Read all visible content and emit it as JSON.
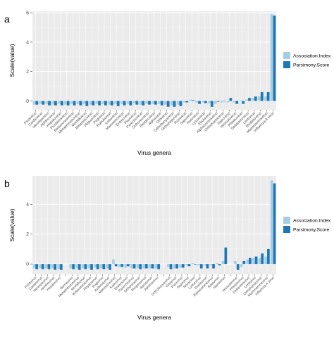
{
  "colors": {
    "association": "#a6cee3",
    "parsimony": "#1f78b4",
    "panel_bg": "#ebebeb",
    "grid_major": "#ffffff",
    "grid_minor": "#f2f2f2",
    "axis_text": "#4d4d4d",
    "title_text": "#000000"
  },
  "chart_data": [
    {
      "panel_label": "a",
      "type": "bar",
      "xlabel": "Virus genera",
      "ylabel": "Scale(value)",
      "ylim": [
        -0.6,
        6.1
      ],
      "yticks": [
        0,
        2,
        4,
        6
      ],
      "ytick_labels": [
        "0",
        "2",
        "4",
        "6"
      ],
      "grid": true,
      "legend_position": "right",
      "categories": [
        "Pestivirus",
        "Cardiovirus",
        "Hennipavirus",
        "Aphthovirus",
        "Hepatovirus",
        "Picobirnavirus",
        "Betacoronavirus",
        "Metapneumovirus",
        "Morbillivirus",
        "Betaretrovirus",
        "Hepacivirus",
        "Pegivirus",
        "Rubulavirus",
        "Kobuvirus",
        "Mamastrovirus",
        "Enterovirus",
        "Flavivirus",
        "Parechovirus",
        "Orthoreovirus",
        "Respirovirus",
        "Alphavirus",
        "Orbivirus",
        "Orthobunyavirus",
        "Orthohepevirus",
        "Rotavirus",
        "Sapovirus",
        "Norovirus",
        "Lyssavirus",
        "Ebolavirus",
        "Alphacoronavirus",
        "Orthohantavirus",
        "Nairovirus",
        "Vesiculovirus",
        "Phlebovirus",
        "Deltaretrovirus",
        "Lentivirus",
        "Rhabdovirus",
        "Mammarenavirus",
        "Influenza A virus"
      ],
      "series": [
        {
          "name": "Association.Index",
          "values": [
            -0.25,
            -0.2,
            -0.2,
            -0.25,
            -0.2,
            -0.25,
            -0.2,
            -0.2,
            -0.2,
            -0.25,
            -0.2,
            -0.2,
            -0.25,
            -0.2,
            -0.2,
            -0.2,
            -0.15,
            -0.25,
            -0.2,
            -0.2,
            -0.2,
            -0.25,
            -0.3,
            -0.25,
            -0.1,
            0.1,
            -0.1,
            -0.1,
            -0.15,
            -0.2,
            -0.1,
            -0.1,
            -0.1,
            0.05,
            0.1,
            0.2,
            0.3,
            0.3,
            5.9
          ]
        },
        {
          "name": "Parsimony.Score",
          "values": [
            -0.25,
            -0.25,
            -0.3,
            -0.3,
            -0.3,
            -0.3,
            -0.3,
            -0.3,
            -0.35,
            -0.3,
            -0.3,
            -0.3,
            -0.3,
            -0.35,
            -0.3,
            -0.3,
            -0.25,
            -0.3,
            -0.25,
            -0.25,
            -0.3,
            -0.4,
            -0.4,
            -0.35,
            -0.1,
            0.05,
            -0.2,
            -0.15,
            -0.4,
            -0.05,
            0.0,
            0.2,
            -0.2,
            -0.2,
            0.2,
            0.3,
            0.6,
            0.6,
            5.8
          ]
        }
      ]
    },
    {
      "panel_label": "b",
      "type": "bar",
      "xlabel": "Virus genera",
      "ylabel": "Scale(value)",
      "ylim": [
        -0.7,
        5.9
      ],
      "yticks": [
        0,
        2,
        4
      ],
      "ytick_labels": [
        "0",
        "2",
        "4"
      ],
      "grid": true,
      "legend_position": "right",
      "categories": [
        "Pestivirus",
        "Cardiovirus",
        "Hennipavirus",
        "Aphthovirus",
        "Hepatovirus",
        "",
        "Bornavirus",
        "Metapneumovirus",
        "Morbillivirus",
        "Betacoronavirus",
        "Hepacivirus",
        "Pegivirus",
        "Avibirnavirus",
        "Mamastrovirus",
        "Kobuvirus",
        "Enterovirus",
        "Parechovirus",
        "Orthoreovirus",
        "Respirovirus",
        "Alphavirus",
        "Aphthovirus",
        "",
        "Orthobunyavirus",
        "Orbivirus",
        "Flavivirus",
        "Sapovirus",
        "Norovirus",
        "Lyssavirus",
        "Ebolavirus",
        "Alphacoronavirus",
        "Rotavirus",
        "Nairovirus",
        "",
        "Vesiculovirus",
        "Phlebovirus",
        "Deltaretrovirus",
        "Lentivirus",
        "Orthohantavirus",
        "Mammarenavirus",
        "Influenza A virus"
      ],
      "series": [
        {
          "name": "Association.Index",
          "values": [
            -0.3,
            -0.3,
            -0.3,
            -0.3,
            -0.35,
            0,
            -0.3,
            -0.3,
            -0.3,
            -0.3,
            -0.25,
            -0.3,
            -0.3,
            0.3,
            -0.2,
            -0.25,
            -0.3,
            -0.3,
            -0.3,
            -0.3,
            -0.3,
            0,
            -0.2,
            -0.3,
            -0.25,
            -0.1,
            0.05,
            -0.1,
            -0.1,
            -0.1,
            0.05,
            0.2,
            0,
            0.2,
            -0.2,
            0.3,
            0.4,
            0.4,
            0.5,
            5.6
          ]
        },
        {
          "name": "Parsimony.Score",
          "values": [
            -0.35,
            -0.35,
            -0.35,
            -0.4,
            -0.4,
            0,
            -0.35,
            -0.4,
            -0.35,
            -0.4,
            -0.35,
            -0.35,
            -0.4,
            -0.15,
            -0.2,
            -0.15,
            -0.3,
            -0.35,
            -0.3,
            -0.3,
            -0.35,
            0,
            -0.35,
            -0.3,
            -0.25,
            -0.15,
            -0.05,
            -0.3,
            -0.3,
            -0.3,
            -0.1,
            1.1,
            0,
            -0.4,
            0.2,
            0.4,
            0.5,
            0.7,
            1.0,
            5.4
          ]
        }
      ]
    }
  ]
}
